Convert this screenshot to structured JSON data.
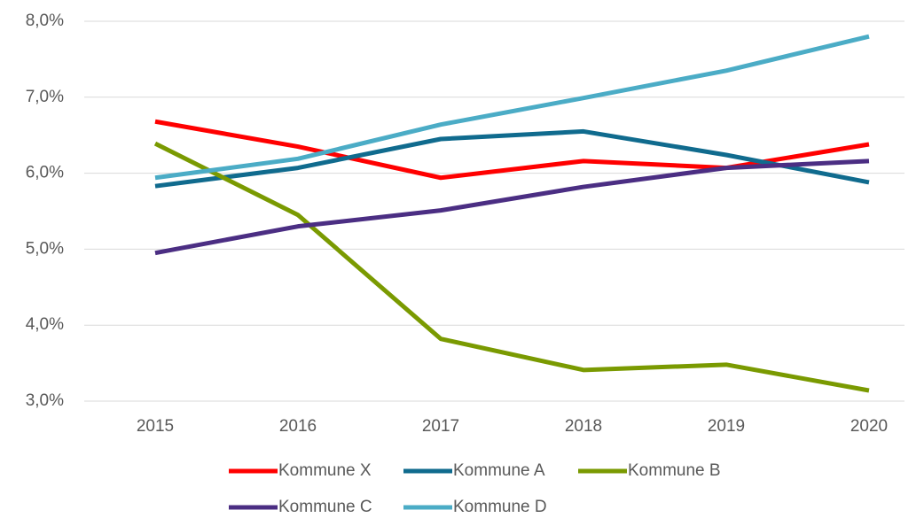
{
  "chart_data": {
    "type": "line",
    "categories": [
      "2015",
      "2016",
      "2017",
      "2018",
      "2019",
      "2020"
    ],
    "series": [
      {
        "name": "Kommune X",
        "color": "#ff0000",
        "values": [
          6.68,
          6.35,
          5.94,
          6.16,
          6.07,
          6.38
        ]
      },
      {
        "name": "Kommune A",
        "color": "#106b8e",
        "values": [
          5.83,
          6.07,
          6.45,
          6.55,
          6.24,
          5.88
        ]
      },
      {
        "name": "Kommune B",
        "color": "#7a9a01",
        "values": [
          6.39,
          5.45,
          3.82,
          3.41,
          3.48,
          3.14
        ]
      },
      {
        "name": "Kommune C",
        "color": "#4b2e83",
        "values": [
          4.95,
          5.3,
          5.51,
          5.82,
          6.07,
          6.16
        ]
      },
      {
        "name": "Kommune D",
        "color": "#4bacc6",
        "values": [
          5.94,
          6.19,
          6.64,
          6.99,
          7.35,
          7.8
        ]
      }
    ],
    "ylim": [
      3,
      8
    ],
    "yticks": [
      {
        "value": 3,
        "label": "3,0%"
      },
      {
        "value": 4,
        "label": "4,0%"
      },
      {
        "value": 5,
        "label": "5,0%"
      },
      {
        "value": 6,
        "label": "6,0%"
      },
      {
        "value": 7,
        "label": "7,0%"
      },
      {
        "value": 8,
        "label": "8,0%"
      }
    ],
    "grid": true,
    "legend": "bottom"
  }
}
